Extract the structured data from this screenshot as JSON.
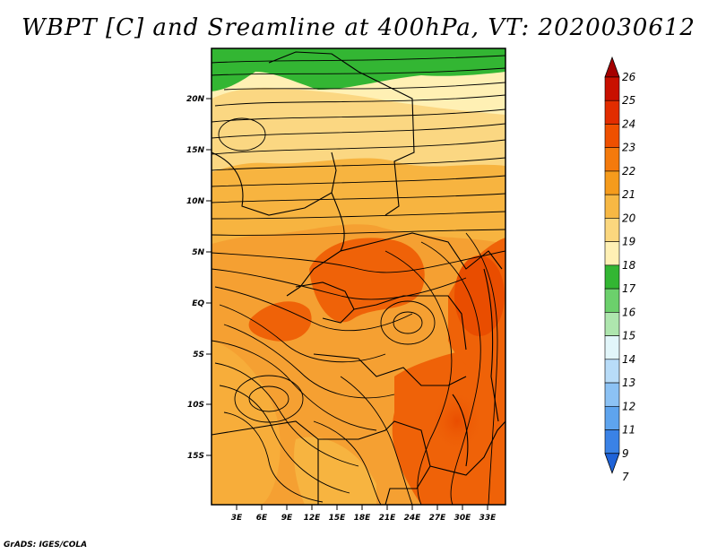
{
  "title": "WBPT [C] and Sreamline at 400hPa, VT: 2020030612",
  "credit": "GrADS: IGES/COLA",
  "map": {
    "lat_ticks": [
      "20N",
      "15N",
      "10N",
      "5N",
      "EQ",
      "5S",
      "10S",
      "15S"
    ],
    "lon_ticks": [
      "3E",
      "6E",
      "9E",
      "12E",
      "15E",
      "18E",
      "21E",
      "24E",
      "27E",
      "30E",
      "33E"
    ]
  },
  "colorbar": {
    "labels": [
      "26",
      "25",
      "24",
      "23",
      "22",
      "21",
      "20",
      "19",
      "18",
      "17",
      "16",
      "15",
      "14",
      "13",
      "12",
      "11",
      "9",
      "7"
    ],
    "colors": [
      "#a50000",
      "#c81000",
      "#e22d00",
      "#ef5000",
      "#f47a0c",
      "#f59b1c",
      "#f7b844",
      "#fbd77e",
      "#fff0b4",
      "#33b633",
      "#6cd06c",
      "#aee6ae",
      "#e2f6fa",
      "#b8dcf8",
      "#8cc2f4",
      "#5ea4ee",
      "#3a82e6",
      "#1f63d8"
    ]
  }
}
